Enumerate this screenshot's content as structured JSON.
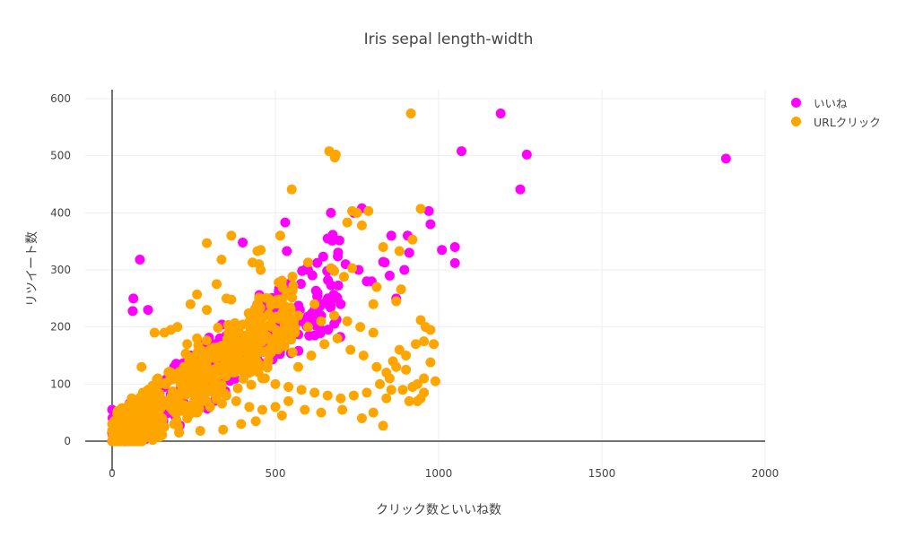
{
  "title": "Iris sepal length-width",
  "xaxis": {
    "label": "クリック数といいね数",
    "ticks": [
      "0",
      "500",
      "1000",
      "1500",
      "2000"
    ]
  },
  "yaxis": {
    "label": "リツイート数",
    "ticks": [
      "0",
      "100",
      "200",
      "300",
      "400",
      "500",
      "600"
    ]
  },
  "legend": [
    {
      "label": "いいね",
      "color": "#ff00ff"
    },
    {
      "label": "URLクリック",
      "color": "#ffa500"
    }
  ],
  "chart_data": {
    "type": "scatter",
    "title": "Iris sepal length-width",
    "xlabel": "クリック数といいね数",
    "ylabel": "リツイート数",
    "xlim": [
      -70,
      2000
    ],
    "ylim": [
      -50,
      615
    ],
    "grid": true,
    "legend_position": "top-right",
    "series": [
      {
        "name": "いいね",
        "color": "#ff00ff",
        "points": [
          [
            1880,
            495
          ],
          [
            1190,
            574
          ],
          [
            1270,
            502
          ],
          [
            1070,
            508
          ],
          [
            1250,
            441
          ],
          [
            1050,
            340
          ],
          [
            1050,
            312
          ],
          [
            1010,
            335
          ],
          [
            975,
            380
          ],
          [
            970,
            403
          ],
          [
            910,
            330
          ],
          [
            905,
            360
          ],
          [
            895,
            300
          ],
          [
            870,
            250
          ],
          [
            855,
            360
          ],
          [
            850,
            290
          ],
          [
            835,
            313
          ],
          [
            830,
            314
          ],
          [
            795,
            280
          ],
          [
            780,
            280
          ],
          [
            765,
            408
          ],
          [
            755,
            300
          ],
          [
            740,
            400
          ],
          [
            715,
            310
          ],
          [
            660,
            355
          ],
          [
            670,
            400
          ],
          [
            595,
            302
          ],
          [
            550,
            270
          ],
          [
            535,
            333
          ],
          [
            530,
            383
          ],
          [
            485,
            250
          ],
          [
            445,
            240
          ],
          [
            400,
            348
          ],
          [
            85,
            318
          ],
          [
            65,
            250
          ],
          [
            63,
            228
          ],
          [
            110,
            230
          ],
          [
            600,
            300
          ],
          [
            700,
            240
          ],
          [
            690,
            250
          ],
          [
            620,
            230
          ],
          [
            580,
            210
          ],
          [
            560,
            200
          ],
          [
            520,
            195
          ],
          [
            500,
            180
          ],
          [
            480,
            175
          ],
          [
            460,
            170
          ],
          [
            400,
            160
          ],
          [
            350,
            150
          ],
          [
            300,
            140
          ],
          [
            250,
            120
          ],
          [
            200,
            110
          ],
          [
            160,
            95
          ],
          [
            120,
            70
          ],
          [
            60,
            40
          ],
          [
            30,
            20
          ],
          [
            0,
            55
          ],
          [
            0,
            15
          ],
          [
            5,
            5
          ],
          [
            540,
            210
          ],
          [
            510,
            220
          ],
          [
            575,
            230
          ],
          [
            640,
            220
          ],
          [
            430,
            200
          ],
          [
            380,
            190
          ],
          [
            330,
            180
          ],
          [
            280,
            170
          ],
          [
            240,
            150
          ],
          [
            190,
            130
          ],
          [
            150,
            100
          ]
        ]
      },
      {
        "name": "URLクリック",
        "color": "#ffa500",
        "points": [
          [
            915,
            574
          ],
          [
            665,
            508
          ],
          [
            685,
            502
          ],
          [
            682,
            497
          ],
          [
            550,
            441
          ],
          [
            945,
            407
          ],
          [
            735,
            403
          ],
          [
            750,
            400
          ],
          [
            785,
            403
          ],
          [
            720,
            383
          ],
          [
            765,
            378
          ],
          [
            365,
            360
          ],
          [
            515,
            360
          ],
          [
            920,
            353
          ],
          [
            445,
            333
          ],
          [
            455,
            335
          ],
          [
            290,
            347
          ],
          [
            335,
            318
          ],
          [
            830,
            340
          ],
          [
            880,
            333
          ],
          [
            430,
            313
          ],
          [
            450,
            310
          ],
          [
            455,
            300
          ],
          [
            600,
            313
          ],
          [
            670,
            303
          ],
          [
            680,
            298
          ],
          [
            735,
            303
          ],
          [
            710,
            288
          ],
          [
            510,
            278
          ],
          [
            320,
            275
          ],
          [
            810,
            270
          ],
          [
            885,
            266
          ],
          [
            260,
            257
          ],
          [
            800,
            240
          ],
          [
            870,
            245
          ],
          [
            350,
            250
          ],
          [
            365,
            248
          ],
          [
            240,
            240
          ],
          [
            290,
            230
          ],
          [
            620,
            240
          ],
          [
            960,
            200
          ],
          [
            975,
            195
          ],
          [
            945,
            212
          ],
          [
            985,
            170
          ],
          [
            955,
            175
          ],
          [
            930,
            170
          ],
          [
            900,
            150
          ],
          [
            900,
            125
          ],
          [
            870,
            130
          ],
          [
            975,
            138
          ],
          [
            990,
            105
          ],
          [
            955,
            110
          ],
          [
            935,
            100
          ],
          [
            920,
            95
          ],
          [
            955,
            85
          ],
          [
            945,
            75
          ],
          [
            935,
            70
          ],
          [
            855,
            90
          ],
          [
            840,
            75
          ],
          [
            830,
            27
          ],
          [
            800,
            50
          ],
          [
            765,
            40
          ],
          [
            705,
            55
          ],
          [
            640,
            50
          ],
          [
            590,
            55
          ],
          [
            520,
            45
          ],
          [
            440,
            35
          ],
          [
            395,
            30
          ],
          [
            340,
            20
          ],
          [
            270,
            18
          ],
          [
            205,
            15
          ],
          [
            140,
            8
          ],
          [
            80,
            10
          ],
          [
            40,
            5
          ],
          [
            20,
            3
          ],
          [
            0,
            0
          ],
          [
            0,
            30
          ],
          [
            30,
            58
          ],
          [
            60,
            75
          ],
          [
            90,
            130
          ],
          [
            130,
            190
          ],
          [
            160,
            190
          ],
          [
            180,
            195
          ],
          [
            200,
            200
          ],
          [
            230,
            170
          ],
          [
            260,
            180
          ],
          [
            300,
            160
          ],
          [
            320,
            150
          ],
          [
            360,
            140
          ],
          [
            400,
            130
          ],
          [
            420,
            120
          ],
          [
            460,
            110
          ],
          [
            500,
            100
          ],
          [
            540,
            95
          ],
          [
            580,
            90
          ],
          [
            620,
            85
          ],
          [
            660,
            80
          ],
          [
            700,
            75
          ],
          [
            740,
            80
          ],
          [
            780,
            85
          ],
          [
            820,
            100
          ],
          [
            840,
            120
          ],
          [
            860,
            140
          ],
          [
            880,
            160
          ],
          [
            800,
            190
          ],
          [
            760,
            200
          ],
          [
            720,
            210
          ],
          [
            680,
            220
          ],
          [
            640,
            210
          ],
          [
            600,
            200
          ],
          [
            560,
            190
          ],
          [
            520,
            170
          ],
          [
            480,
            160
          ],
          [
            440,
            150
          ],
          [
            400,
            140
          ],
          [
            360,
            120
          ],
          [
            320,
            110
          ],
          [
            280,
            100
          ],
          [
            240,
            90
          ],
          [
            200,
            80
          ],
          [
            170,
            70
          ],
          [
            150,
            60
          ],
          [
            120,
            50
          ],
          [
            100,
            40
          ],
          [
            80,
            30
          ],
          [
            60,
            20
          ],
          [
            45,
            15
          ],
          [
            110,
            90
          ],
          [
            140,
            110
          ],
          [
            180,
            120
          ],
          [
            220,
            130
          ],
          [
            250,
            140
          ],
          [
            270,
            120
          ],
          [
            310,
            90
          ],
          [
            350,
            80
          ],
          [
            380,
            70
          ],
          [
            420,
            60
          ],
          [
            460,
            55
          ],
          [
            500,
            60
          ],
          [
            540,
            70
          ],
          [
            570,
            130
          ],
          [
            610,
            150
          ],
          [
            650,
            170
          ],
          [
            690,
            180
          ],
          [
            730,
            160
          ],
          [
            770,
            150
          ],
          [
            810,
            130
          ],
          [
            850,
            110
          ],
          [
            890,
            90
          ],
          [
            910,
            70
          ],
          [
            300,
            60
          ],
          [
            260,
            50
          ],
          [
            230,
            40
          ],
          [
            190,
            30
          ],
          [
            160,
            25
          ],
          [
            210,
            100
          ],
          [
            240,
            110
          ],
          [
            280,
            120
          ],
          [
            330,
            130
          ],
          [
            370,
            150
          ],
          [
            410,
            170
          ],
          [
            450,
            190
          ],
          [
            490,
            200
          ],
          [
            530,
            210
          ],
          [
            570,
            220
          ]
        ]
      }
    ]
  }
}
